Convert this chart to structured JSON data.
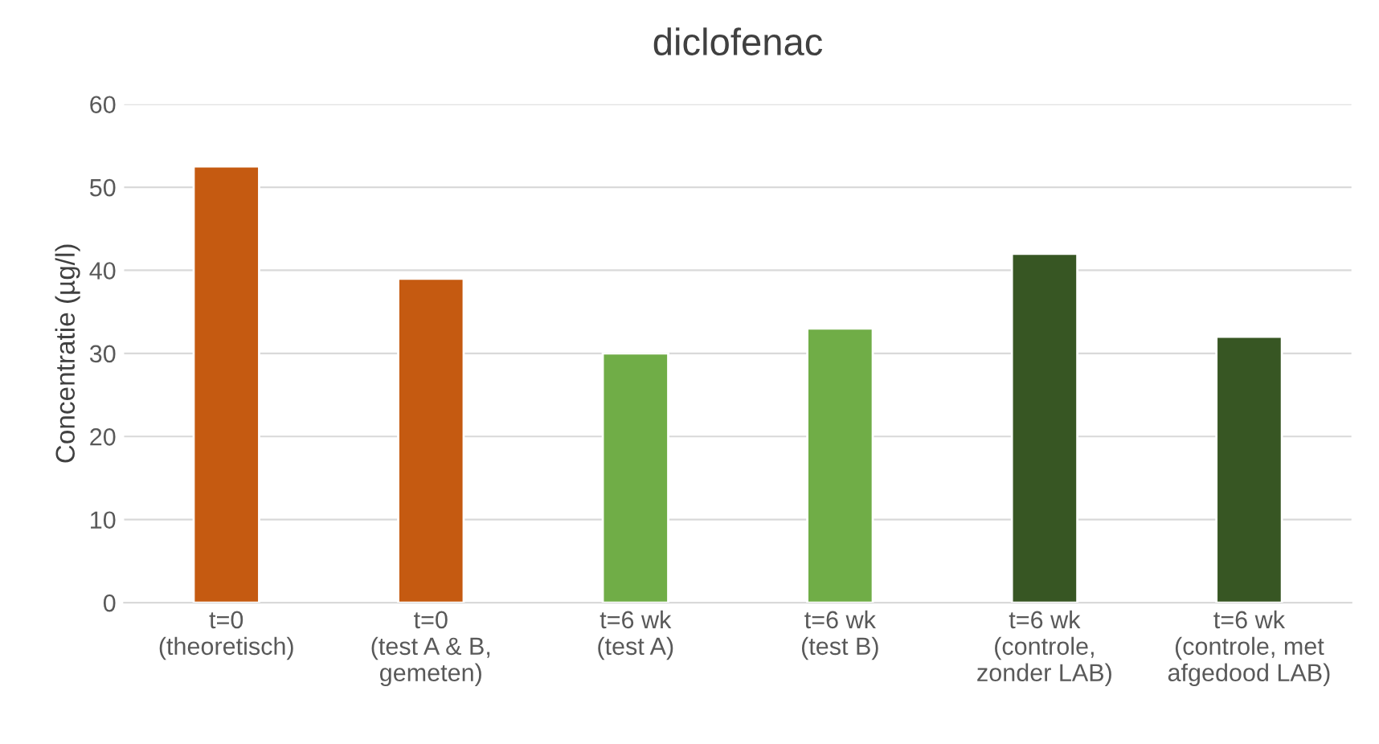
{
  "chart_data": {
    "type": "bar",
    "title": "diclofenac",
    "ylabel": "Concentratie (µg/l)",
    "categories": [
      "t=0\n(theoretisch)",
      "t=0\n(test A & B,\ngemeten)",
      "t=6 wk\n(test A)",
      "t=6 wk\n(test B)",
      "t=6 wk\n(controle,\nzonder LAB)",
      "t=6 wk\n(controle, met\nafgedood LAB)"
    ],
    "values": [
      52.5,
      39,
      30,
      33,
      42,
      32
    ],
    "colors": [
      "#c55a11",
      "#c55a11",
      "#70ad47",
      "#70ad47",
      "#375623",
      "#375623"
    ],
    "ylim": [
      0,
      60
    ],
    "yticks": [
      0,
      10,
      20,
      30,
      40,
      50,
      60
    ],
    "grid": "y",
    "legend": false
  }
}
